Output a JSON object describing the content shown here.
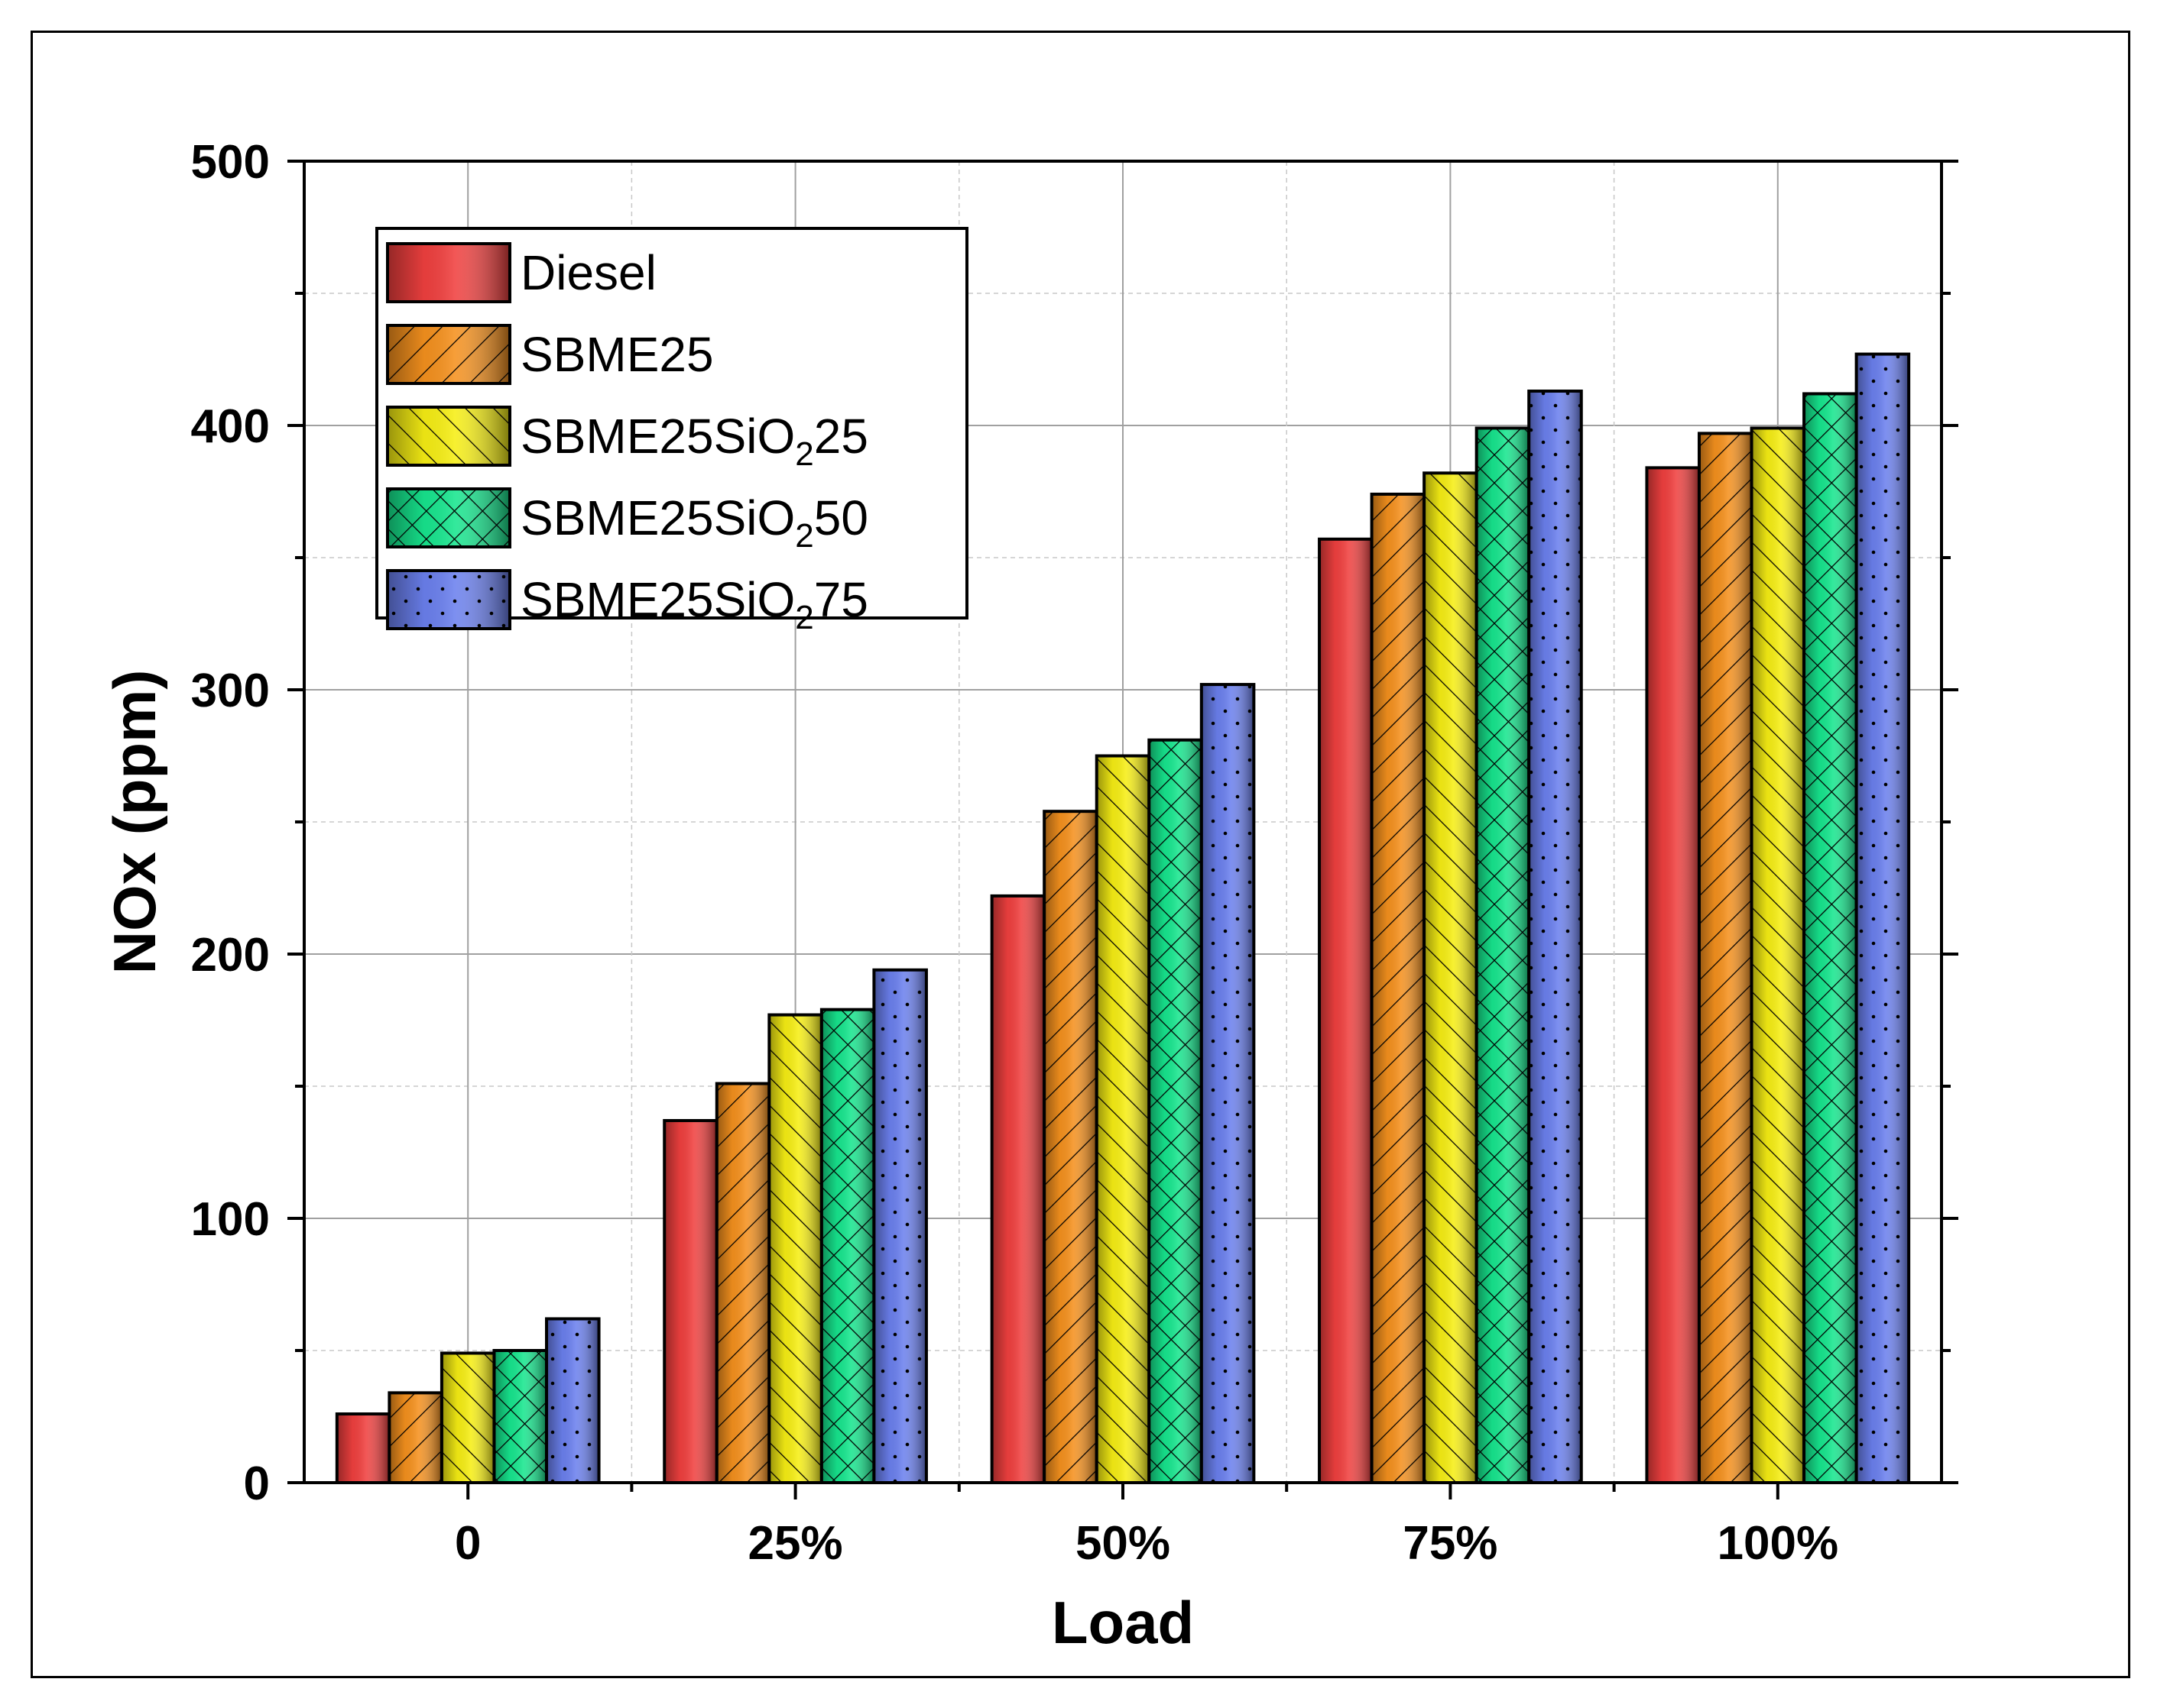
{
  "chart_data": {
    "type": "bar",
    "title": "",
    "xlabel": "Load",
    "ylabel": "NOx (ppm)",
    "ylim": [
      0,
      500
    ],
    "yticks": [
      0,
      100,
      200,
      300,
      400,
      500
    ],
    "categories": [
      "0",
      "25%",
      "50%",
      "75%",
      "100%"
    ],
    "grid": true,
    "legend_position": "top-left",
    "series": [
      {
        "name": "Diesel",
        "legend": {
          "main": "Diesel",
          "sub": "",
          "tail": ""
        },
        "color": "#f0403f",
        "pattern": "none",
        "values": [
          26,
          137,
          222,
          357,
          384
        ]
      },
      {
        "name": "SBME25",
        "legend": {
          "main": "SBME25",
          "sub": "",
          "tail": ""
        },
        "color": "#f5911e",
        "pattern": "forward-diagonal",
        "values": [
          34,
          151,
          254,
          374,
          397
        ]
      },
      {
        "name": "SBME25SiO225",
        "legend": {
          "main": "SBME25SiO",
          "sub": "2",
          "tail": "25"
        },
        "color": "#f6ee14",
        "pattern": "back-diagonal",
        "values": [
          49,
          177,
          275,
          382,
          399
        ]
      },
      {
        "name": "SBME25SiO250",
        "legend": {
          "main": "SBME25SiO",
          "sub": "2",
          "tail": "50"
        },
        "color": "#17e68e",
        "pattern": "crosshatch",
        "values": [
          50,
          179,
          281,
          399,
          412
        ]
      },
      {
        "name": "SBME25SiO275",
        "legend": {
          "main": "SBME25SiO",
          "sub": "2",
          "tail": "75"
        },
        "color": "#6b80ee",
        "pattern": "dots",
        "values": [
          62,
          194,
          302,
          413,
          427
        ]
      }
    ]
  }
}
